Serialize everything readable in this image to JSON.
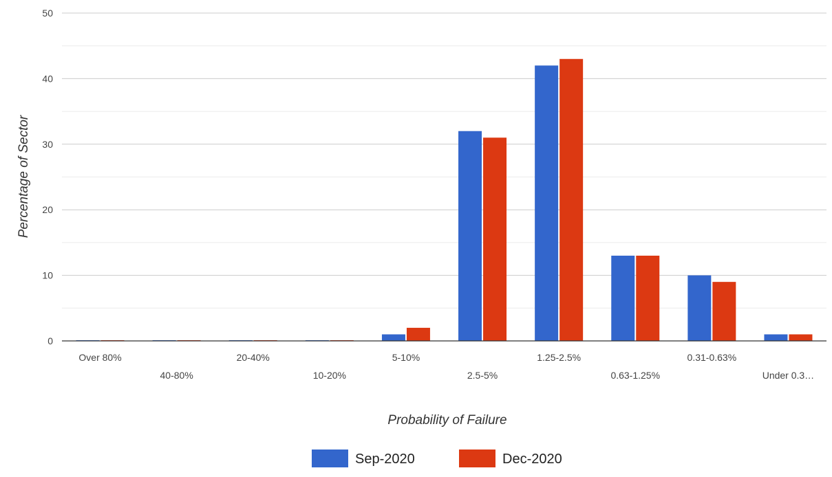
{
  "chart_data": {
    "type": "bar",
    "title": "",
    "xlabel": "Probability of Failure",
    "ylabel": "Percentage of Sector",
    "categories": [
      "Over 80%",
      "40-80%",
      "20-40%",
      "10-20%",
      "5-10%",
      "2.5-5%",
      "1.25-2.5%",
      "0.63-1.25%",
      "0.31-0.63%",
      "Under 0.3…"
    ],
    "series": [
      {
        "name": "Sep-2020",
        "color": "#3366cc",
        "values": [
          0,
          0,
          0,
          0,
          1,
          32,
          42,
          13,
          10,
          1
        ]
      },
      {
        "name": "Dec-2020",
        "color": "#dc3912",
        "values": [
          0,
          0,
          0,
          0,
          2,
          31,
          43,
          13,
          9,
          1
        ]
      }
    ],
    "ylim": [
      0,
      50
    ],
    "yticks": [
      0,
      10,
      20,
      30,
      40,
      50
    ],
    "grid": true,
    "legend": "bottom"
  }
}
